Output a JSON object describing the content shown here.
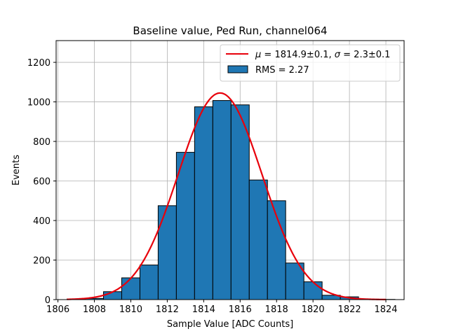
{
  "chart_data": {
    "type": "bar",
    "title": "Baseline value, Ped Run, channel064",
    "xlabel": "Sample Value [ADC Counts]",
    "ylabel": "Events",
    "xlim": [
      1805.9,
      1825.0
    ],
    "ylim": [
      0,
      1310
    ],
    "xticks": [
      1806,
      1808,
      1810,
      1812,
      1814,
      1816,
      1818,
      1820,
      1822,
      1824
    ],
    "yticks": [
      0,
      200,
      400,
      600,
      800,
      1000,
      1200
    ],
    "grid": true,
    "legend_position": "top-right",
    "bin_width": 1,
    "bins": [
      {
        "x0": 1806.5,
        "value": 3
      },
      {
        "x0": 1807.5,
        "value": 6
      },
      {
        "x0": 1808.5,
        "value": 40
      },
      {
        "x0": 1809.5,
        "value": 110
      },
      {
        "x0": 1810.5,
        "value": 175
      },
      {
        "x0": 1811.5,
        "value": 475
      },
      {
        "x0": 1812.5,
        "value": 745
      },
      {
        "x0": 1813.5,
        "value": 975
      },
      {
        "x0": 1814.5,
        "value": 1007
      },
      {
        "x0": 1815.5,
        "value": 985
      },
      {
        "x0": 1816.5,
        "value": 605
      },
      {
        "x0": 1817.5,
        "value": 500
      },
      {
        "x0": 1818.5,
        "value": 185
      },
      {
        "x0": 1819.5,
        "value": 90
      },
      {
        "x0": 1820.5,
        "value": 22
      },
      {
        "x0": 1821.5,
        "value": 14
      },
      {
        "x0": 1822.5,
        "value": 2
      },
      {
        "x0": 1823.5,
        "value": 1
      }
    ],
    "fit": {
      "mu": 1814.9,
      "sigma": 2.3,
      "amplitude": 1045,
      "x_range": [
        1806.5,
        1824.0
      ]
    },
    "series": [
      {
        "name": "fit",
        "label_parts": [
          "μ",
          " = 1814.9±0.1, ",
          "σ",
          " = 2.3±0.1"
        ],
        "color": "#e8000b",
        "kind": "line"
      },
      {
        "name": "RMS = 2.27",
        "color": "#1f77b4",
        "kind": "bar"
      }
    ],
    "colors": {
      "bar_fill": "#1f77b4",
      "bar_edge": "#000000",
      "fit_line": "#e8000b",
      "grid": "#b0b0b0"
    }
  }
}
